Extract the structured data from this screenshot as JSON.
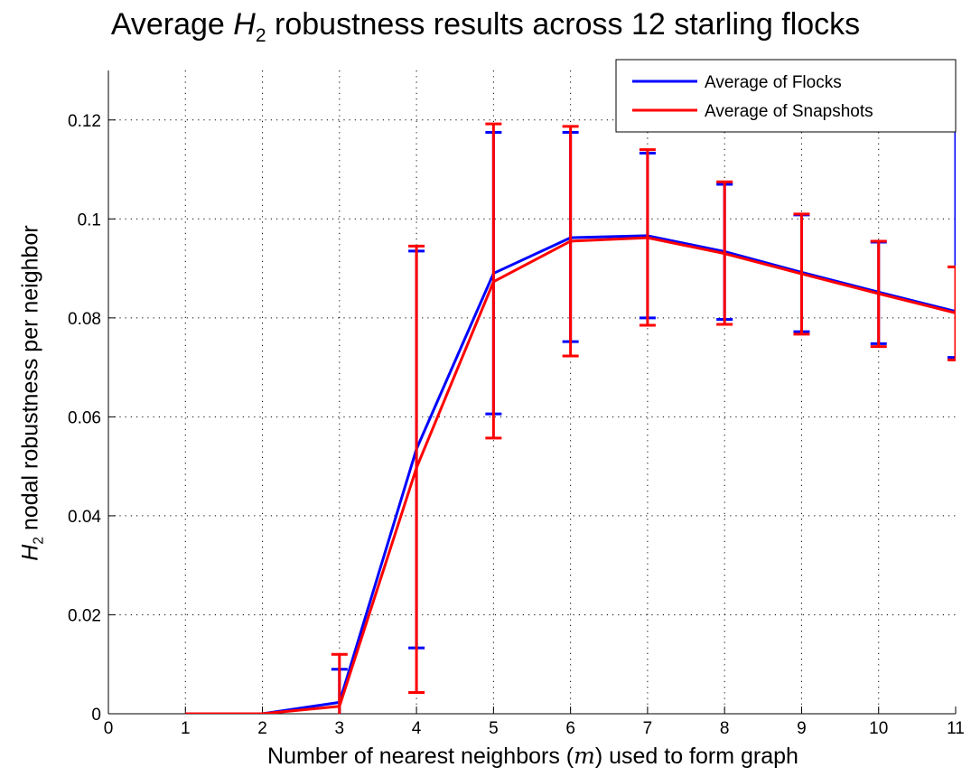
{
  "chart_data": {
    "type": "line",
    "title": {
      "prefix": "Average ",
      "symbol": "H",
      "subscript": "2",
      "suffix": " robustness results across 12 starling flocks"
    },
    "xlabel": {
      "prefix": "Number of nearest neighbors (",
      "variable": "m",
      "suffix": ") used to form graph"
    },
    "ylabel": {
      "symbol": "H",
      "subscript": "2",
      "suffix": " nodal robustness per neighbor"
    },
    "xlim": [
      0,
      11
    ],
    "ylim": [
      0,
      0.13
    ],
    "xticks": [
      "0",
      "1",
      "2",
      "3",
      "4",
      "5",
      "6",
      "7",
      "8",
      "9",
      "10",
      "11"
    ],
    "yticks": [
      "0",
      "0.02",
      "0.04",
      "0.06",
      "0.08",
      "0.1",
      "0.12"
    ],
    "grid": true,
    "legend_position": "top-right",
    "x": [
      1,
      2,
      3,
      4,
      5,
      6,
      7,
      8,
      9,
      10,
      11
    ],
    "series": [
      {
        "name": "Average of Flocks",
        "color": "#0000ff",
        "values": [
          0,
          0,
          0.0023,
          0.0535,
          0.089,
          0.0962,
          0.0966,
          0.0934,
          0.0892,
          0.0852,
          0.0813
        ],
        "error_low": [
          null,
          null,
          null,
          0.0133,
          0.0606,
          0.0752,
          0.08,
          0.0797,
          0.0772,
          0.0748,
          0.072
        ],
        "error_high": [
          null,
          null,
          0.009,
          0.0935,
          0.1175,
          0.1175,
          0.1133,
          0.107,
          0.1008,
          0.0953,
          null
        ]
      },
      {
        "name": "Average of Snapshots",
        "color": "#ff0000",
        "values": [
          0,
          0,
          0.0015,
          0.0497,
          0.0873,
          0.0955,
          0.0962,
          0.093,
          0.0889,
          0.0849,
          0.081
        ],
        "error_low": [
          null,
          null,
          null,
          0.0043,
          0.0557,
          0.0723,
          0.0785,
          0.0787,
          0.0767,
          0.0742,
          0.0715
        ],
        "error_high": [
          null,
          null,
          0.012,
          0.0945,
          0.1192,
          0.1187,
          0.114,
          0.1075,
          0.101,
          0.0955,
          0.0903
        ]
      }
    ]
  }
}
